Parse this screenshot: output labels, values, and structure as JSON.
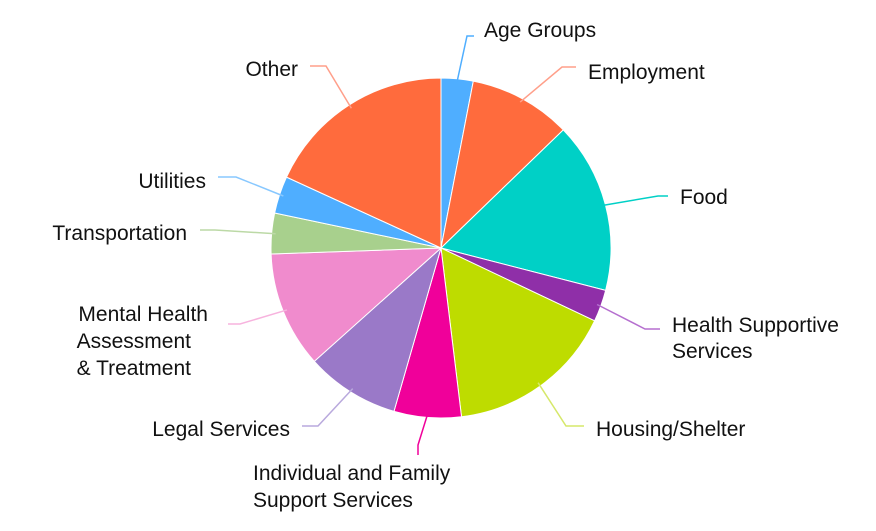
{
  "chart_data": {
    "type": "pie",
    "title": "",
    "slices": [
      {
        "label": "Age Groups",
        "value": 3.0,
        "color": "#4faeff"
      },
      {
        "label": "Employment",
        "value": 9.6,
        "color": "#ff6b3d"
      },
      {
        "label": "Food",
        "value": 16.0,
        "color": "#00d0c6"
      },
      {
        "label": "Health Supportive Services",
        "value": 3.0,
        "color": "#8f2fa8"
      },
      {
        "label": "Housing/Shelter",
        "value": 15.8,
        "color": "#bedc00"
      },
      {
        "label": "Individual and Family Support Services",
        "value": 6.3,
        "color": "#f0009a"
      },
      {
        "label": "Legal Services",
        "value": 8.8,
        "color": "#9a79c8"
      },
      {
        "label": "Mental Health Assessment & Treatment",
        "value": 10.9,
        "color": "#f08bcd"
      },
      {
        "label": "Transportation",
        "value": 3.8,
        "color": "#a8d08d"
      },
      {
        "label": "Utilities",
        "value": 3.5,
        "color": "#4faeff"
      },
      {
        "label": "Other",
        "value": 17.9,
        "color": "#ff6b3d"
      }
    ],
    "leader_colors": [
      "#4faeff",
      "#ff9f8a",
      "#00d0c6",
      "#b56fcf",
      "#d6e86a",
      "#f0009a",
      "#b9a9dd",
      "#f7b3de",
      "#bcd9a6",
      "#88c8ff",
      "#ff9f8a"
    ],
    "legend": "none"
  }
}
